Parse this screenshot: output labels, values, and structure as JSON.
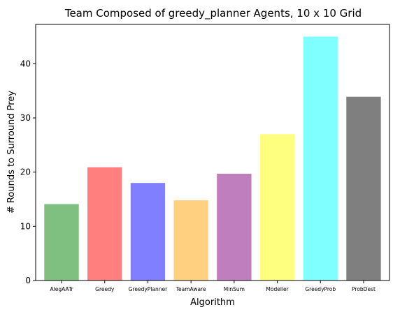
{
  "chart_data": {
    "type": "bar",
    "title": "Team Composed of greedy_planner Agents, 10 x 10 Grid",
    "xlabel": "Algorithm",
    "ylabel": "# Rounds to Surround Prey",
    "categories": [
      "AlegAATr",
      "Greedy",
      "GreedyPlanner",
      "TeamAware",
      "MinSum",
      "Modeller",
      "GreedyProb",
      "ProbDest"
    ],
    "values": [
      14.1,
      20.9,
      18.0,
      14.8,
      19.7,
      27.0,
      45.0,
      33.9
    ],
    "colors": [
      "#7fbf7f",
      "#ff7f7f",
      "#7f7fff",
      "#ffd07f",
      "#bf7fbf",
      "#ffff7f",
      "#7fffff",
      "#7f7f7f"
    ],
    "ylim": [
      0,
      47.25
    ],
    "yticks": [
      0,
      10,
      20,
      30,
      40
    ],
    "grid": false,
    "legend": "none"
  }
}
